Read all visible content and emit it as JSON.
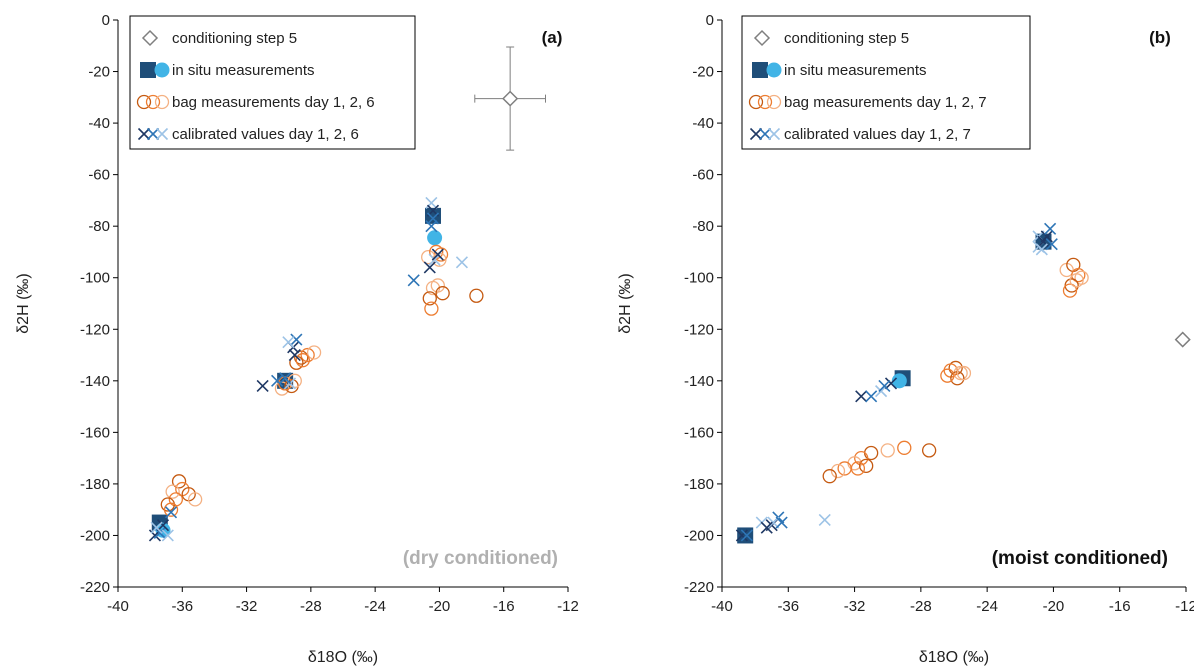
{
  "colors": {
    "step5": "#7f7f7f",
    "insitu_dark": "#1f4e79",
    "insitu_light": "#41b4e6",
    "bag_dark": "#c55a11",
    "bag_mid": "#ed7d31",
    "bag_light": "#f4b183",
    "cal_dark": "#1f3864",
    "cal_mid": "#2e75b6",
    "cal_light": "#9dc3e6",
    "axis": "#000000",
    "dry_annotation": "#b0b0b0",
    "moist_annotation": "#111111"
  },
  "chart_data": [
    {
      "type": "scatter",
      "panel_label": "(a)",
      "annotation": "(dry conditioned)",
      "annotation_style": "dry",
      "xlabel": "δ18O (‰)",
      "ylabel": "δ2H (‰)",
      "xlim": [
        -40,
        -12
      ],
      "ylim": [
        -220,
        0
      ],
      "xticks": [
        -40,
        -36,
        -32,
        -28,
        -24,
        -20,
        -16,
        -12
      ],
      "yticks": [
        0,
        -20,
        -40,
        -60,
        -80,
        -100,
        -120,
        -140,
        -160,
        -180,
        -200,
        -220
      ],
      "grid": false,
      "legend_position": "top-left",
      "legend": [
        {
          "key": "step5",
          "label": "conditioning step 5"
        },
        {
          "key": "insitu",
          "label": "in situ measurements"
        },
        {
          "key": "bag",
          "label": "bag measurements day 1, 2, 6"
        },
        {
          "key": "cal",
          "label": "calibrated values day 1, 2, 6"
        }
      ],
      "series": [
        {
          "key": "step5",
          "marker": "diamond",
          "points": [
            [
              -15.6,
              -30.5
            ]
          ],
          "error_bars": {
            "x": 2.2,
            "y": 20
          }
        },
        {
          "key": "insitu_dark",
          "marker": "square",
          "points": [
            [
              -29.6,
              -140
            ],
            [
              -37.4,
              -195
            ],
            [
              -20.4,
              -76
            ]
          ]
        },
        {
          "key": "insitu_light",
          "marker": "circle-filled",
          "points": [
            [
              -20.3,
              -84.5
            ],
            [
              -37.2,
              -198
            ]
          ]
        },
        {
          "key": "bag",
          "marker": "circle-open",
          "points": [
            [
              -36.2,
              -179
            ],
            [
              -36.0,
              -182
            ],
            [
              -36.6,
              -183
            ],
            [
              -35.6,
              -184
            ],
            [
              -36.4,
              -186
            ],
            [
              -35.2,
              -186
            ],
            [
              -36.9,
              -188
            ],
            [
              -36.7,
              -190
            ],
            [
              -29.8,
              -143
            ],
            [
              -29.2,
              -142
            ],
            [
              -29.6,
              -141
            ],
            [
              -29.0,
              -140
            ],
            [
              -28.6,
              -131
            ],
            [
              -28.2,
              -130
            ],
            [
              -27.8,
              -129
            ],
            [
              -28.9,
              -133
            ],
            [
              -28.5,
              -132
            ],
            [
              -20.4,
              -104
            ],
            [
              -20.6,
              -108
            ],
            [
              -20.5,
              -112
            ],
            [
              -20.1,
              -103
            ],
            [
              -19.8,
              -106
            ],
            [
              -19.9,
              -91
            ],
            [
              -20.7,
              -92
            ],
            [
              -17.7,
              -107
            ],
            [
              -20.2,
              -90
            ],
            [
              -20.0,
              -93
            ]
          ]
        },
        {
          "key": "cal",
          "marker": "x",
          "points": [
            [
              -37.7,
              -200
            ],
            [
              -37.4,
              -199
            ],
            [
              -36.9,
              -200
            ],
            [
              -37.2,
              -196
            ],
            [
              -36.7,
              -191
            ],
            [
              -37.6,
              -197
            ],
            [
              -31.0,
              -142
            ],
            [
              -30.1,
              -140
            ],
            [
              -29.3,
              -141
            ],
            [
              -29.1,
              -127
            ],
            [
              -28.9,
              -124
            ],
            [
              -29.4,
              -125
            ],
            [
              -29.0,
              -130
            ],
            [
              -29.6,
              -139
            ],
            [
              -20.5,
              -71
            ],
            [
              -20.4,
              -74
            ],
            [
              -20.4,
              -77
            ],
            [
              -20.3,
              -93
            ],
            [
              -20.6,
              -96
            ],
            [
              -21.6,
              -101
            ],
            [
              -18.6,
              -94
            ],
            [
              -20.1,
              -91
            ],
            [
              -20.5,
              -80
            ]
          ]
        }
      ]
    },
    {
      "type": "scatter",
      "panel_label": "(b)",
      "annotation": "(moist conditioned)",
      "annotation_style": "moist",
      "xlabel": "δ18O (‰)",
      "ylabel": "δ2H (‰)",
      "xlim": [
        -40,
        -12
      ],
      "ylim": [
        -220,
        0
      ],
      "xticks": [
        -40,
        -36,
        -32,
        -28,
        -24,
        -20,
        -16,
        -12
      ],
      "yticks": [
        0,
        -20,
        -40,
        -60,
        -80,
        -100,
        -120,
        -140,
        -160,
        -180,
        -200,
        -220
      ],
      "grid": false,
      "legend_position": "top-left",
      "legend": [
        {
          "key": "step5",
          "label": "conditioning step 5"
        },
        {
          "key": "insitu",
          "label": "in situ measurements"
        },
        {
          "key": "bag",
          "label": "bag measurements day 1, 2, 7"
        },
        {
          "key": "cal",
          "label": "calibrated values day 1, 2, 7"
        }
      ],
      "series": [
        {
          "key": "step5",
          "marker": "diamond",
          "points": [
            [
              -12.2,
              -124
            ]
          ],
          "error_bars": null
        },
        {
          "key": "insitu_dark",
          "marker": "square",
          "points": [
            [
              -29.1,
              -139
            ],
            [
              -38.6,
              -200
            ],
            [
              -20.6,
              -86
            ]
          ]
        },
        {
          "key": "insitu_light",
          "marker": "circle-filled",
          "points": [
            [
              -29.3,
              -140
            ]
          ]
        },
        {
          "key": "bag",
          "marker": "circle-open",
          "points": [
            [
              -25.9,
              -135
            ],
            [
              -26.2,
              -136
            ],
            [
              -25.6,
              -137
            ],
            [
              -25.8,
              -139
            ],
            [
              -26.4,
              -138
            ],
            [
              -25.4,
              -137
            ],
            [
              -27.5,
              -167
            ],
            [
              -29.0,
              -166
            ],
            [
              -30.0,
              -167
            ],
            [
              -31.0,
              -168
            ],
            [
              -31.6,
              -170
            ],
            [
              -32.0,
              -172
            ],
            [
              -31.3,
              -173
            ],
            [
              -32.6,
              -174
            ],
            [
              -33.0,
              -175
            ],
            [
              -33.5,
              -177
            ],
            [
              -31.8,
              -174
            ],
            [
              -19.2,
              -97
            ],
            [
              -18.8,
              -95
            ],
            [
              -18.5,
              -99
            ],
            [
              -18.3,
              -100
            ],
            [
              -18.9,
              -103
            ],
            [
              -19.0,
              -105
            ],
            [
              -18.6,
              -101
            ]
          ]
        },
        {
          "key": "cal",
          "marker": "x",
          "points": [
            [
              -38.8,
              -200
            ],
            [
              -38.5,
              -200
            ],
            [
              -37.6,
              -195
            ],
            [
              -37.0,
              -196
            ],
            [
              -36.6,
              -193
            ],
            [
              -36.9,
              -195
            ],
            [
              -37.3,
              -197
            ],
            [
              -36.4,
              -195
            ],
            [
              -33.8,
              -194
            ],
            [
              -31.6,
              -146
            ],
            [
              -31.0,
              -146
            ],
            [
              -30.4,
              -144
            ],
            [
              -29.8,
              -141
            ],
            [
              -30.2,
              -142
            ],
            [
              -20.9,
              -84
            ],
            [
              -20.4,
              -84
            ],
            [
              -20.2,
              -81
            ],
            [
              -20.9,
              -88
            ],
            [
              -20.6,
              -86
            ],
            [
              -20.1,
              -87
            ],
            [
              -20.7,
              -89
            ]
          ]
        }
      ]
    }
  ]
}
